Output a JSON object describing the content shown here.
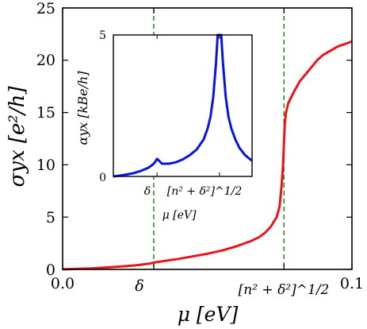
{
  "chart_data": [
    {
      "type": "line",
      "xlabel": "μ [eV]",
      "ylabel": "σyx [e²/h]",
      "xlim": [
        0,
        0.1
      ],
      "ylim": [
        0,
        25
      ],
      "grid": false,
      "x_ticks": [
        {
          "value": 0.0,
          "label": "0.0"
        },
        {
          "value": 0.0315,
          "label": "δ"
        },
        {
          "value": 0.0765,
          "label": "[n² + δ²]^1/2"
        },
        {
          "value": 0.1,
          "label": "0.1"
        }
      ],
      "y_ticks": [
        0,
        5,
        10,
        15,
        20,
        25
      ],
      "vlines": [
        {
          "x": 0.0315,
          "style": "dashed",
          "color": "#228b22"
        },
        {
          "x": 0.0765,
          "style": "dashed",
          "color": "#228b22"
        }
      ],
      "series": [
        {
          "color": "#e8161a",
          "points": [
            [
              0.0,
              0.0
            ],
            [
              0.005,
              0.05
            ],
            [
              0.01,
              0.1
            ],
            [
              0.015,
              0.18
            ],
            [
              0.02,
              0.27
            ],
            [
              0.025,
              0.38
            ],
            [
              0.03,
              0.55
            ],
            [
              0.032,
              0.68
            ],
            [
              0.035,
              0.8
            ],
            [
              0.04,
              1.0
            ],
            [
              0.045,
              1.25
            ],
            [
              0.05,
              1.5
            ],
            [
              0.055,
              1.8
            ],
            [
              0.06,
              2.2
            ],
            [
              0.065,
              2.7
            ],
            [
              0.068,
              3.1
            ],
            [
              0.07,
              3.5
            ],
            [
              0.072,
              4.1
            ],
            [
              0.074,
              5.0
            ],
            [
              0.075,
              6.0
            ],
            [
              0.0757,
              8.0
            ],
            [
              0.0762,
              10.0
            ],
            [
              0.0765,
              12.0
            ],
            [
              0.0768,
              14.0
            ],
            [
              0.0772,
              15.0
            ],
            [
              0.078,
              15.9
            ],
            [
              0.08,
              17.0
            ],
            [
              0.082,
              18.0
            ],
            [
              0.085,
              19.0
            ],
            [
              0.088,
              20.0
            ],
            [
              0.09,
              20.5
            ],
            [
              0.095,
              21.3
            ],
            [
              0.1,
              21.8
            ]
          ]
        }
      ]
    },
    {
      "type": "line",
      "xlabel": "μ [eV]",
      "ylabel": "αyx [kBe/h]",
      "xlim": [
        0,
        0.1
      ],
      "ylim": [
        0,
        5
      ],
      "y_ticks": [
        0,
        5
      ],
      "x_ticks": [
        {
          "value": 0.0315,
          "label": "δ"
        },
        {
          "value": 0.0765,
          "label": "[n² + δ²]^1/2"
        }
      ],
      "series": [
        {
          "color": "#0a14e0",
          "points": [
            [
              0.0,
              0.0
            ],
            [
              0.005,
              0.03
            ],
            [
              0.01,
              0.07
            ],
            [
              0.015,
              0.12
            ],
            [
              0.02,
              0.2
            ],
            [
              0.025,
              0.3
            ],
            [
              0.028,
              0.4
            ],
            [
              0.03,
              0.5
            ],
            [
              0.0315,
              0.62
            ],
            [
              0.033,
              0.55
            ],
            [
              0.035,
              0.45
            ],
            [
              0.04,
              0.45
            ],
            [
              0.045,
              0.5
            ],
            [
              0.05,
              0.6
            ],
            [
              0.055,
              0.75
            ],
            [
              0.06,
              0.95
            ],
            [
              0.065,
              1.3
            ],
            [
              0.068,
              1.7
            ],
            [
              0.07,
              2.1
            ],
            [
              0.072,
              2.8
            ],
            [
              0.074,
              4.0
            ],
            [
              0.0752,
              5.0
            ],
            [
              0.0778,
              5.0
            ],
            [
              0.079,
              4.0
            ],
            [
              0.081,
              2.8
            ],
            [
              0.083,
              2.1
            ],
            [
              0.085,
              1.7
            ],
            [
              0.088,
              1.3
            ],
            [
              0.091,
              1.0
            ],
            [
              0.095,
              0.75
            ],
            [
              0.1,
              0.55
            ]
          ]
        }
      ]
    }
  ]
}
